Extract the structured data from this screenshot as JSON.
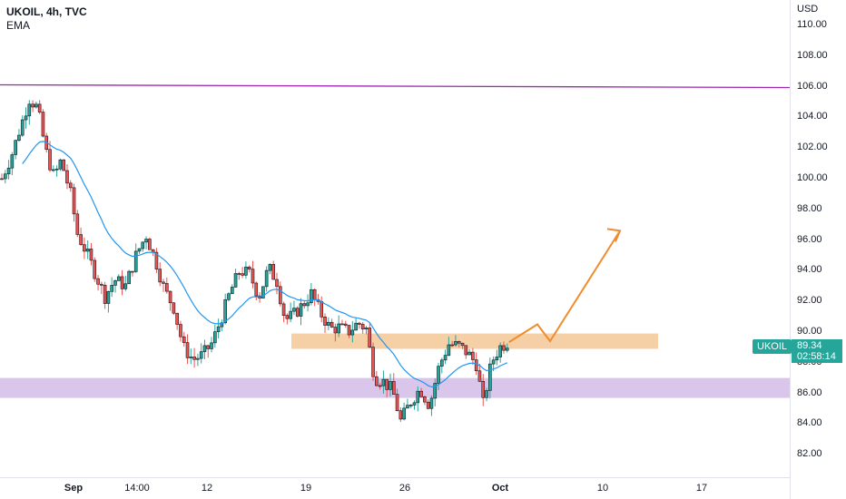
{
  "legend": {
    "title": "UKOIL, 4h, TVC",
    "indicator": "EMA"
  },
  "price_axis": {
    "unit": "USD",
    "ticks": [
      "110.00",
      "108.00",
      "106.00",
      "104.00",
      "102.00",
      "100.00",
      "98.00",
      "96.00",
      "94.00",
      "92.00",
      "90.00",
      "88.00",
      "86.00",
      "84.00",
      "82.00"
    ]
  },
  "time_axis": {
    "ticks": [
      {
        "label": "Sep",
        "bold": true
      },
      {
        "label": "14:00",
        "bold": false
      },
      {
        "label": "12",
        "bold": false
      },
      {
        "label": "19",
        "bold": false
      },
      {
        "label": "26",
        "bold": false
      },
      {
        "label": "Oct",
        "bold": true
      },
      {
        "label": "10",
        "bold": false
      },
      {
        "label": "17",
        "bold": false
      }
    ]
  },
  "last_price": {
    "symbol": "UKOIL",
    "price": "89.34",
    "countdown": "02:58:14"
  },
  "colors": {
    "up": "#26a69a",
    "down": "#ef5350",
    "ema": "#2196f3",
    "resistance_zone": "#f5cfa6",
    "support_zone": "#d9c6ea",
    "horizontal_line": "#9c27b0",
    "projection": "#f08c2e"
  },
  "chart_data": {
    "type": "candlestick",
    "symbol": "UKOIL",
    "timeframe": "4h",
    "source": "TVC",
    "y_axis": {
      "unit": "USD",
      "range": [
        81,
        112.2
      ]
    },
    "indicator": "EMA",
    "close_path": [
      {
        "t": 0,
        "c": 100.0
      },
      {
        "t": 0.7,
        "c": 101.5
      },
      {
        "t": 1.4,
        "c": 103.5
      },
      {
        "t": 2.0,
        "c": 105.2
      },
      {
        "t": 2.6,
        "c": 104.6
      },
      {
        "t": 3.2,
        "c": 101.8
      },
      {
        "t": 3.8,
        "c": 100.1
      },
      {
        "t": 4.3,
        "c": 101.2
      },
      {
        "t": 5.0,
        "c": 99.0
      },
      {
        "t": 5.5,
        "c": 96.4
      },
      {
        "t": 6.2,
        "c": 95.1
      },
      {
        "t": 6.8,
        "c": 93.8
      },
      {
        "t": 7.5,
        "c": 92.3
      },
      {
        "t": 8.2,
        "c": 93.4
      },
      {
        "t": 9.0,
        "c": 93.0
      },
      {
        "t": 9.8,
        "c": 95.1
      },
      {
        "t": 10.5,
        "c": 96.3
      },
      {
        "t": 11.2,
        "c": 94.6
      },
      {
        "t": 11.8,
        "c": 92.8
      },
      {
        "t": 12.5,
        "c": 91.6
      },
      {
        "t": 13.2,
        "c": 89.0
      },
      {
        "t": 13.9,
        "c": 88.2
      },
      {
        "t": 14.6,
        "c": 88.5
      },
      {
        "t": 15.3,
        "c": 89.3
      },
      {
        "t": 16.0,
        "c": 91.0
      },
      {
        "t": 16.6,
        "c": 92.6
      },
      {
        "t": 17.3,
        "c": 94.0
      },
      {
        "t": 18.0,
        "c": 93.8
      },
      {
        "t": 18.7,
        "c": 92.3
      },
      {
        "t": 19.4,
        "c": 94.2
      },
      {
        "t": 20.0,
        "c": 93.3
      },
      {
        "t": 20.6,
        "c": 90.8
      },
      {
        "t": 21.2,
        "c": 91.1
      },
      {
        "t": 21.9,
        "c": 91.8
      },
      {
        "t": 22.5,
        "c": 92.5
      },
      {
        "t": 23.2,
        "c": 91.2
      },
      {
        "t": 23.9,
        "c": 90.2
      },
      {
        "t": 24.5,
        "c": 90.3
      },
      {
        "t": 25.2,
        "c": 90.0
      },
      {
        "t": 25.9,
        "c": 90.6
      },
      {
        "t": 26.5,
        "c": 90.2
      },
      {
        "t": 27.1,
        "c": 87.0
      },
      {
        "t": 27.7,
        "c": 86.8
      },
      {
        "t": 28.4,
        "c": 86.2
      },
      {
        "t": 29.0,
        "c": 84.2
      },
      {
        "t": 29.7,
        "c": 85.4
      },
      {
        "t": 30.4,
        "c": 86.3
      },
      {
        "t": 31.1,
        "c": 85.2
      },
      {
        "t": 31.8,
        "c": 87.8
      },
      {
        "t": 32.5,
        "c": 89.2
      },
      {
        "t": 33.2,
        "c": 89.1
      },
      {
        "t": 33.9,
        "c": 88.6
      },
      {
        "t": 34.5,
        "c": 87.9
      },
      {
        "t": 35.0,
        "c": 85.3
      },
      {
        "t": 35.6,
        "c": 88.0
      },
      {
        "t": 36.2,
        "c": 89.0
      },
      {
        "t": 36.8,
        "c": 89.34
      }
    ],
    "horizontal_line": {
      "price": 106.0
    },
    "zones": [
      {
        "kind": "resistance",
        "from": 88.9,
        "to": 89.9
      },
      {
        "kind": "support",
        "from": 85.7,
        "to": 87.0
      }
    ],
    "projection_path": [
      89.34,
      90.5,
      89.4,
      96.6
    ],
    "last_price": 89.34,
    "grid": false
  }
}
